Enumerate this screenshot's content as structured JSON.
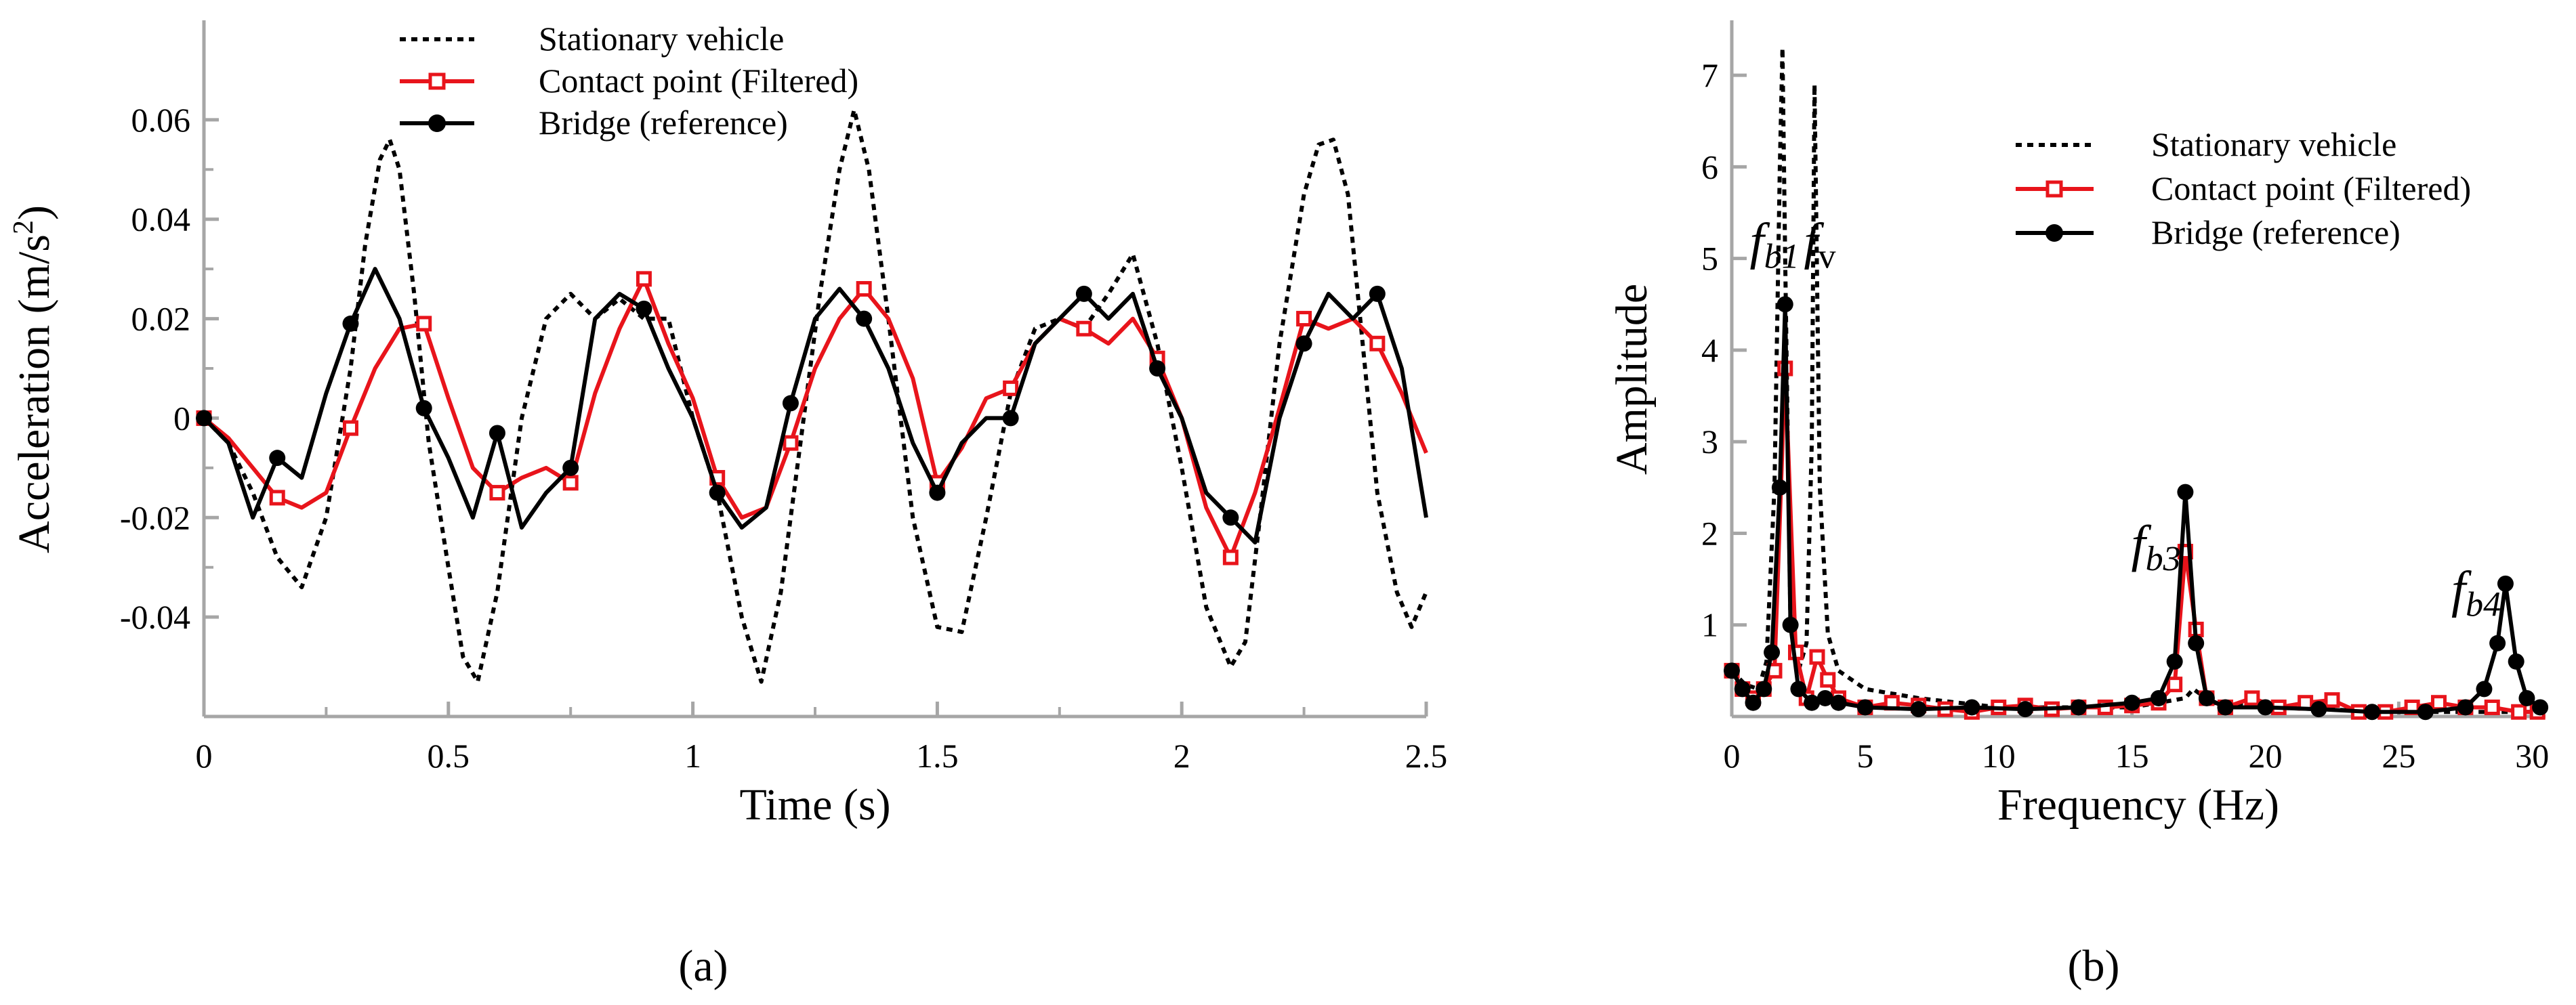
{
  "colors": {
    "red": "#e8141b",
    "black": "#000000",
    "axis": "#a6a6a6"
  },
  "chart_data": [
    {
      "panel": "(a)",
      "type": "line",
      "xlabel": "Time (s)",
      "ylabel_main": "Acceleration (m/s",
      "ylabel_sup": "2",
      "ylabel_end": ")",
      "xlim": [
        0,
        2.5
      ],
      "ylim": [
        -0.06,
        0.08
      ],
      "xticks": [
        0,
        0.5,
        1,
        1.5,
        2,
        2.5
      ],
      "xtick_labels": [
        "0",
        "0.5",
        "1",
        "1.5",
        "2",
        "2.5"
      ],
      "yticks": [
        -0.04,
        -0.02,
        0,
        0.02,
        0.04,
        0.06
      ],
      "ytick_labels": [
        "-0.04",
        "-0.02",
        "0",
        "0.02",
        "0.04",
        "0.06"
      ],
      "legend": [
        "Stationary vehicle",
        "Contact point (Filtered)",
        "Bridge (reference)"
      ],
      "series": [
        {
          "name": "Stationary vehicle",
          "style": "dotted",
          "x": [
            0,
            0.05,
            0.1,
            0.15,
            0.2,
            0.25,
            0.3,
            0.33,
            0.36,
            0.38,
            0.4,
            0.43,
            0.46,
            0.5,
            0.53,
            0.56,
            0.6,
            0.65,
            0.7,
            0.75,
            0.8,
            0.85,
            0.9,
            0.95,
            1.0,
            1.05,
            1.1,
            1.14,
            1.18,
            1.22,
            1.26,
            1.3,
            1.33,
            1.36,
            1.4,
            1.45,
            1.5,
            1.55,
            1.6,
            1.65,
            1.7,
            1.75,
            1.8,
            1.85,
            1.9,
            1.95,
            2.0,
            2.05,
            2.1,
            2.13,
            2.16,
            2.2,
            2.25,
            2.28,
            2.31,
            2.34,
            2.37,
            2.4,
            2.44,
            2.47,
            2.5
          ],
          "y": [
            0,
            -0.005,
            -0.015,
            -0.028,
            -0.034,
            -0.02,
            0.01,
            0.035,
            0.052,
            0.056,
            0.05,
            0.025,
            -0.005,
            -0.03,
            -0.048,
            -0.053,
            -0.035,
            0.0,
            0.02,
            0.025,
            0.02,
            0.024,
            0.02,
            0.02,
            0.0,
            -0.015,
            -0.04,
            -0.053,
            -0.035,
            -0.005,
            0.025,
            0.05,
            0.062,
            0.05,
            0.02,
            -0.02,
            -0.042,
            -0.043,
            -0.02,
            0.005,
            0.018,
            0.02,
            0.018,
            0.025,
            0.033,
            0.015,
            -0.01,
            -0.038,
            -0.05,
            -0.045,
            -0.02,
            0.015,
            0.045,
            0.055,
            0.056,
            0.045,
            0.015,
            -0.015,
            -0.035,
            -0.042,
            -0.035
          ]
        },
        {
          "name": "Contact point (Filtered)",
          "style": "red-square",
          "x": [
            0,
            0.05,
            0.1,
            0.15,
            0.2,
            0.25,
            0.3,
            0.35,
            0.4,
            0.45,
            0.5,
            0.55,
            0.6,
            0.65,
            0.7,
            0.75,
            0.8,
            0.85,
            0.9,
            0.95,
            1.0,
            1.05,
            1.1,
            1.15,
            1.2,
            1.25,
            1.3,
            1.35,
            1.4,
            1.45,
            1.5,
            1.55,
            1.6,
            1.65,
            1.7,
            1.75,
            1.8,
            1.85,
            1.9,
            1.95,
            2.0,
            2.05,
            2.1,
            2.15,
            2.2,
            2.25,
            2.3,
            2.35,
            2.4,
            2.45,
            2.5
          ],
          "y": [
            0,
            -0.004,
            -0.01,
            -0.016,
            -0.018,
            -0.015,
            -0.002,
            0.01,
            0.018,
            0.019,
            0.004,
            -0.01,
            -0.015,
            -0.012,
            -0.01,
            -0.013,
            0.005,
            0.018,
            0.028,
            0.015,
            0.004,
            -0.012,
            -0.02,
            -0.018,
            -0.005,
            0.01,
            0.02,
            0.026,
            0.02,
            0.008,
            -0.013,
            -0.006,
            0.004,
            0.006,
            0.015,
            0.02,
            0.018,
            0.015,
            0.02,
            0.012,
            0.0,
            -0.018,
            -0.028,
            -0.015,
            0.002,
            0.02,
            0.018,
            0.02,
            0.015,
            0.005,
            -0.007
          ]
        },
        {
          "name": "Bridge (reference)",
          "style": "black-circle",
          "x": [
            0,
            0.05,
            0.1,
            0.15,
            0.2,
            0.25,
            0.3,
            0.35,
            0.4,
            0.45,
            0.5,
            0.55,
            0.6,
            0.65,
            0.7,
            0.75,
            0.8,
            0.85,
            0.9,
            0.95,
            1.0,
            1.05,
            1.1,
            1.15,
            1.2,
            1.25,
            1.3,
            1.35,
            1.4,
            1.45,
            1.5,
            1.55,
            1.6,
            1.65,
            1.7,
            1.75,
            1.8,
            1.85,
            1.9,
            1.95,
            2.0,
            2.05,
            2.1,
            2.15,
            2.2,
            2.25,
            2.3,
            2.35,
            2.4,
            2.45,
            2.5
          ],
          "y": [
            0,
            -0.005,
            -0.02,
            -0.008,
            -0.012,
            0.005,
            0.019,
            0.03,
            0.02,
            0.002,
            -0.008,
            -0.02,
            -0.003,
            -0.022,
            -0.015,
            -0.01,
            0.02,
            0.025,
            0.022,
            0.01,
            0.0,
            -0.015,
            -0.022,
            -0.018,
            0.003,
            0.02,
            0.026,
            0.02,
            0.01,
            -0.005,
            -0.015,
            -0.005,
            0.0,
            0.0,
            0.015,
            0.02,
            0.025,
            0.02,
            0.025,
            0.01,
            0.0,
            -0.015,
            -0.02,
            -0.025,
            0.0,
            0.015,
            0.025,
            0.02,
            0.025,
            0.01,
            -0.02
          ]
        }
      ]
    },
    {
      "panel": "(b)",
      "type": "line",
      "xlabel": "Frequency (Hz)",
      "ylabel": "Amplitude",
      "xlim": [
        0,
        30.5
      ],
      "ylim": [
        0,
        7.6
      ],
      "xticks": [
        0,
        5,
        10,
        15,
        20,
        25,
        30
      ],
      "xtick_labels": [
        "0",
        "5",
        "10",
        "15",
        "20",
        "25",
        "30"
      ],
      "yticks": [
        1,
        2,
        3,
        4,
        5,
        6,
        7
      ],
      "ytick_labels": [
        "1",
        "2",
        "3",
        "4",
        "5",
        "6",
        "7"
      ],
      "legend": [
        "Stationary vehicle",
        "Contact point (Filtered)",
        "Bridge (reference)"
      ],
      "annotations": [
        {
          "base": "f",
          "sub": "b1",
          "at_x": 1.6,
          "at_y": 5.0
        },
        {
          "base": "f",
          "sub": "v",
          "at_x": 3.3,
          "at_y": 5.0
        },
        {
          "base": "f",
          "sub": "b3",
          "at_x": 15.9,
          "at_y": 1.7
        },
        {
          "base": "f",
          "sub": "b4",
          "at_x": 27.9,
          "at_y": 1.2
        }
      ],
      "series": [
        {
          "name": "Stationary vehicle",
          "style": "dotted",
          "x": [
            0,
            0.5,
            1.0,
            1.3,
            1.6,
            1.8,
            1.9,
            2.0,
            2.2,
            2.5,
            2.8,
            3.0,
            3.1,
            3.3,
            3.6,
            4.0,
            5.0,
            7.0,
            10,
            15,
            17,
            17.3,
            18,
            20,
            25,
            28,
            29,
            30
          ],
          "y": [
            0.5,
            0.35,
            0.3,
            0.6,
            2.5,
            6.0,
            7.3,
            5.0,
            1.0,
            0.5,
            0.8,
            3.0,
            6.9,
            2.5,
            0.9,
            0.5,
            0.3,
            0.2,
            0.1,
            0.1,
            0.2,
            0.3,
            0.15,
            0.1,
            0.05,
            0.05,
            0.05,
            0.05
          ]
        },
        {
          "name": "Contact point (Filtered)",
          "style": "red-square",
          "x": [
            0,
            0.4,
            0.8,
            1.2,
            1.6,
            2.0,
            2.4,
            2.8,
            3.2,
            3.6,
            4.0,
            5,
            6,
            7,
            8,
            9,
            10,
            11,
            12,
            13,
            14,
            15,
            16,
            16.6,
            17.0,
            17.4,
            17.8,
            18.5,
            19.5,
            20.5,
            21.5,
            22.5,
            23.5,
            24.5,
            25.5,
            26.5,
            27.5,
            28.5,
            29.5,
            30.2
          ],
          "y": [
            0.5,
            0.3,
            0.2,
            0.3,
            0.5,
            3.8,
            0.7,
            0.2,
            0.65,
            0.4,
            0.2,
            0.1,
            0.15,
            0.12,
            0.08,
            0.05,
            0.1,
            0.12,
            0.08,
            0.1,
            0.1,
            0.12,
            0.15,
            0.35,
            1.8,
            0.95,
            0.2,
            0.1,
            0.2,
            0.1,
            0.15,
            0.18,
            0.05,
            0.05,
            0.1,
            0.15,
            0.1,
            0.1,
            0.05,
            0.05
          ]
        },
        {
          "name": "Bridge (reference)",
          "style": "black-circle",
          "x": [
            0,
            0.4,
            0.8,
            1.2,
            1.5,
            1.8,
            2.0,
            2.2,
            2.5,
            3.0,
            3.5,
            4,
            5,
            7,
            9,
            11,
            13,
            15,
            16,
            16.6,
            17.0,
            17.4,
            17.8,
            18.5,
            20,
            22,
            24,
            26,
            27.5,
            28.2,
            28.7,
            29.0,
            29.4,
            29.8,
            30.3
          ],
          "y": [
            0.5,
            0.3,
            0.15,
            0.3,
            0.7,
            2.5,
            4.5,
            1.0,
            0.3,
            0.15,
            0.2,
            0.15,
            0.1,
            0.08,
            0.1,
            0.08,
            0.1,
            0.15,
            0.2,
            0.6,
            2.45,
            0.8,
            0.2,
            0.1,
            0.1,
            0.08,
            0.05,
            0.05,
            0.1,
            0.3,
            0.8,
            1.45,
            0.6,
            0.2,
            0.1
          ]
        }
      ]
    }
  ]
}
